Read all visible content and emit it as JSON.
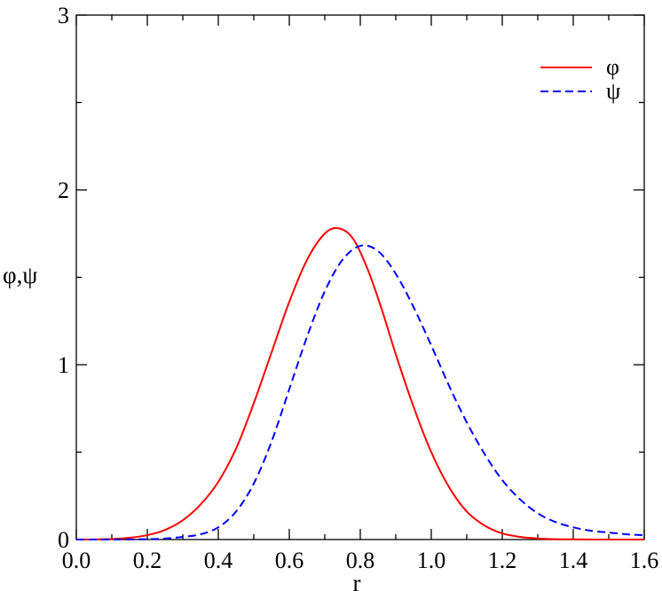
{
  "chart_data": {
    "type": "line",
    "xlabel": "r",
    "ylabel": "φ,ψ",
    "xlim": [
      0,
      1.6
    ],
    "ylim": [
      0,
      3
    ],
    "x_ticks": [
      0.0,
      0.2,
      0.4,
      0.6,
      0.8,
      1.0,
      1.2,
      1.4,
      1.6
    ],
    "x_tick_labels": [
      "0.0",
      "0.2",
      "0.4",
      "0.6",
      "0.8",
      "1.0",
      "1.2",
      "1.4",
      "1.6"
    ],
    "y_ticks": [
      0,
      1,
      2,
      3
    ],
    "y_tick_labels": [
      "0",
      "1",
      "2",
      "3"
    ],
    "grid": false,
    "legend_position": "top-right",
    "series": [
      {
        "name": "φ",
        "color": "#ff0000",
        "style": "solid",
        "x": [
          0.0,
          0.05,
          0.1,
          0.15,
          0.2,
          0.25,
          0.3,
          0.35,
          0.4,
          0.45,
          0.5,
          0.55,
          0.6,
          0.65,
          0.7,
          0.74,
          0.78,
          0.82,
          0.86,
          0.9,
          0.95,
          1.0,
          1.05,
          1.1,
          1.15,
          1.2,
          1.25,
          1.3,
          1.35,
          1.4,
          1.5,
          1.6
        ],
        "values": [
          0.0,
          0.0005,
          0.003,
          0.01,
          0.025,
          0.055,
          0.11,
          0.2,
          0.33,
          0.52,
          0.78,
          1.07,
          1.36,
          1.6,
          1.75,
          1.78,
          1.72,
          1.55,
          1.32,
          1.06,
          0.76,
          0.5,
          0.3,
          0.16,
          0.08,
          0.035,
          0.015,
          0.006,
          0.002,
          0.001,
          0.0,
          0.0
        ]
      },
      {
        "name": "ψ",
        "color": "#0000ff",
        "style": "dashed",
        "x": [
          0.0,
          0.1,
          0.2,
          0.25,
          0.3,
          0.35,
          0.4,
          0.45,
          0.5,
          0.55,
          0.6,
          0.65,
          0.7,
          0.75,
          0.8,
          0.85,
          0.9,
          0.95,
          1.0,
          1.05,
          1.1,
          1.15,
          1.2,
          1.25,
          1.3,
          1.35,
          1.4,
          1.45,
          1.5,
          1.55,
          1.6
        ],
        "values": [
          0.0,
          0.0,
          0.002,
          0.006,
          0.015,
          0.03,
          0.07,
          0.16,
          0.32,
          0.56,
          0.86,
          1.16,
          1.42,
          1.6,
          1.68,
          1.65,
          1.52,
          1.33,
          1.11,
          0.88,
          0.67,
          0.49,
          0.34,
          0.23,
          0.15,
          0.1,
          0.07,
          0.05,
          0.04,
          0.03,
          0.025
        ]
      }
    ]
  }
}
